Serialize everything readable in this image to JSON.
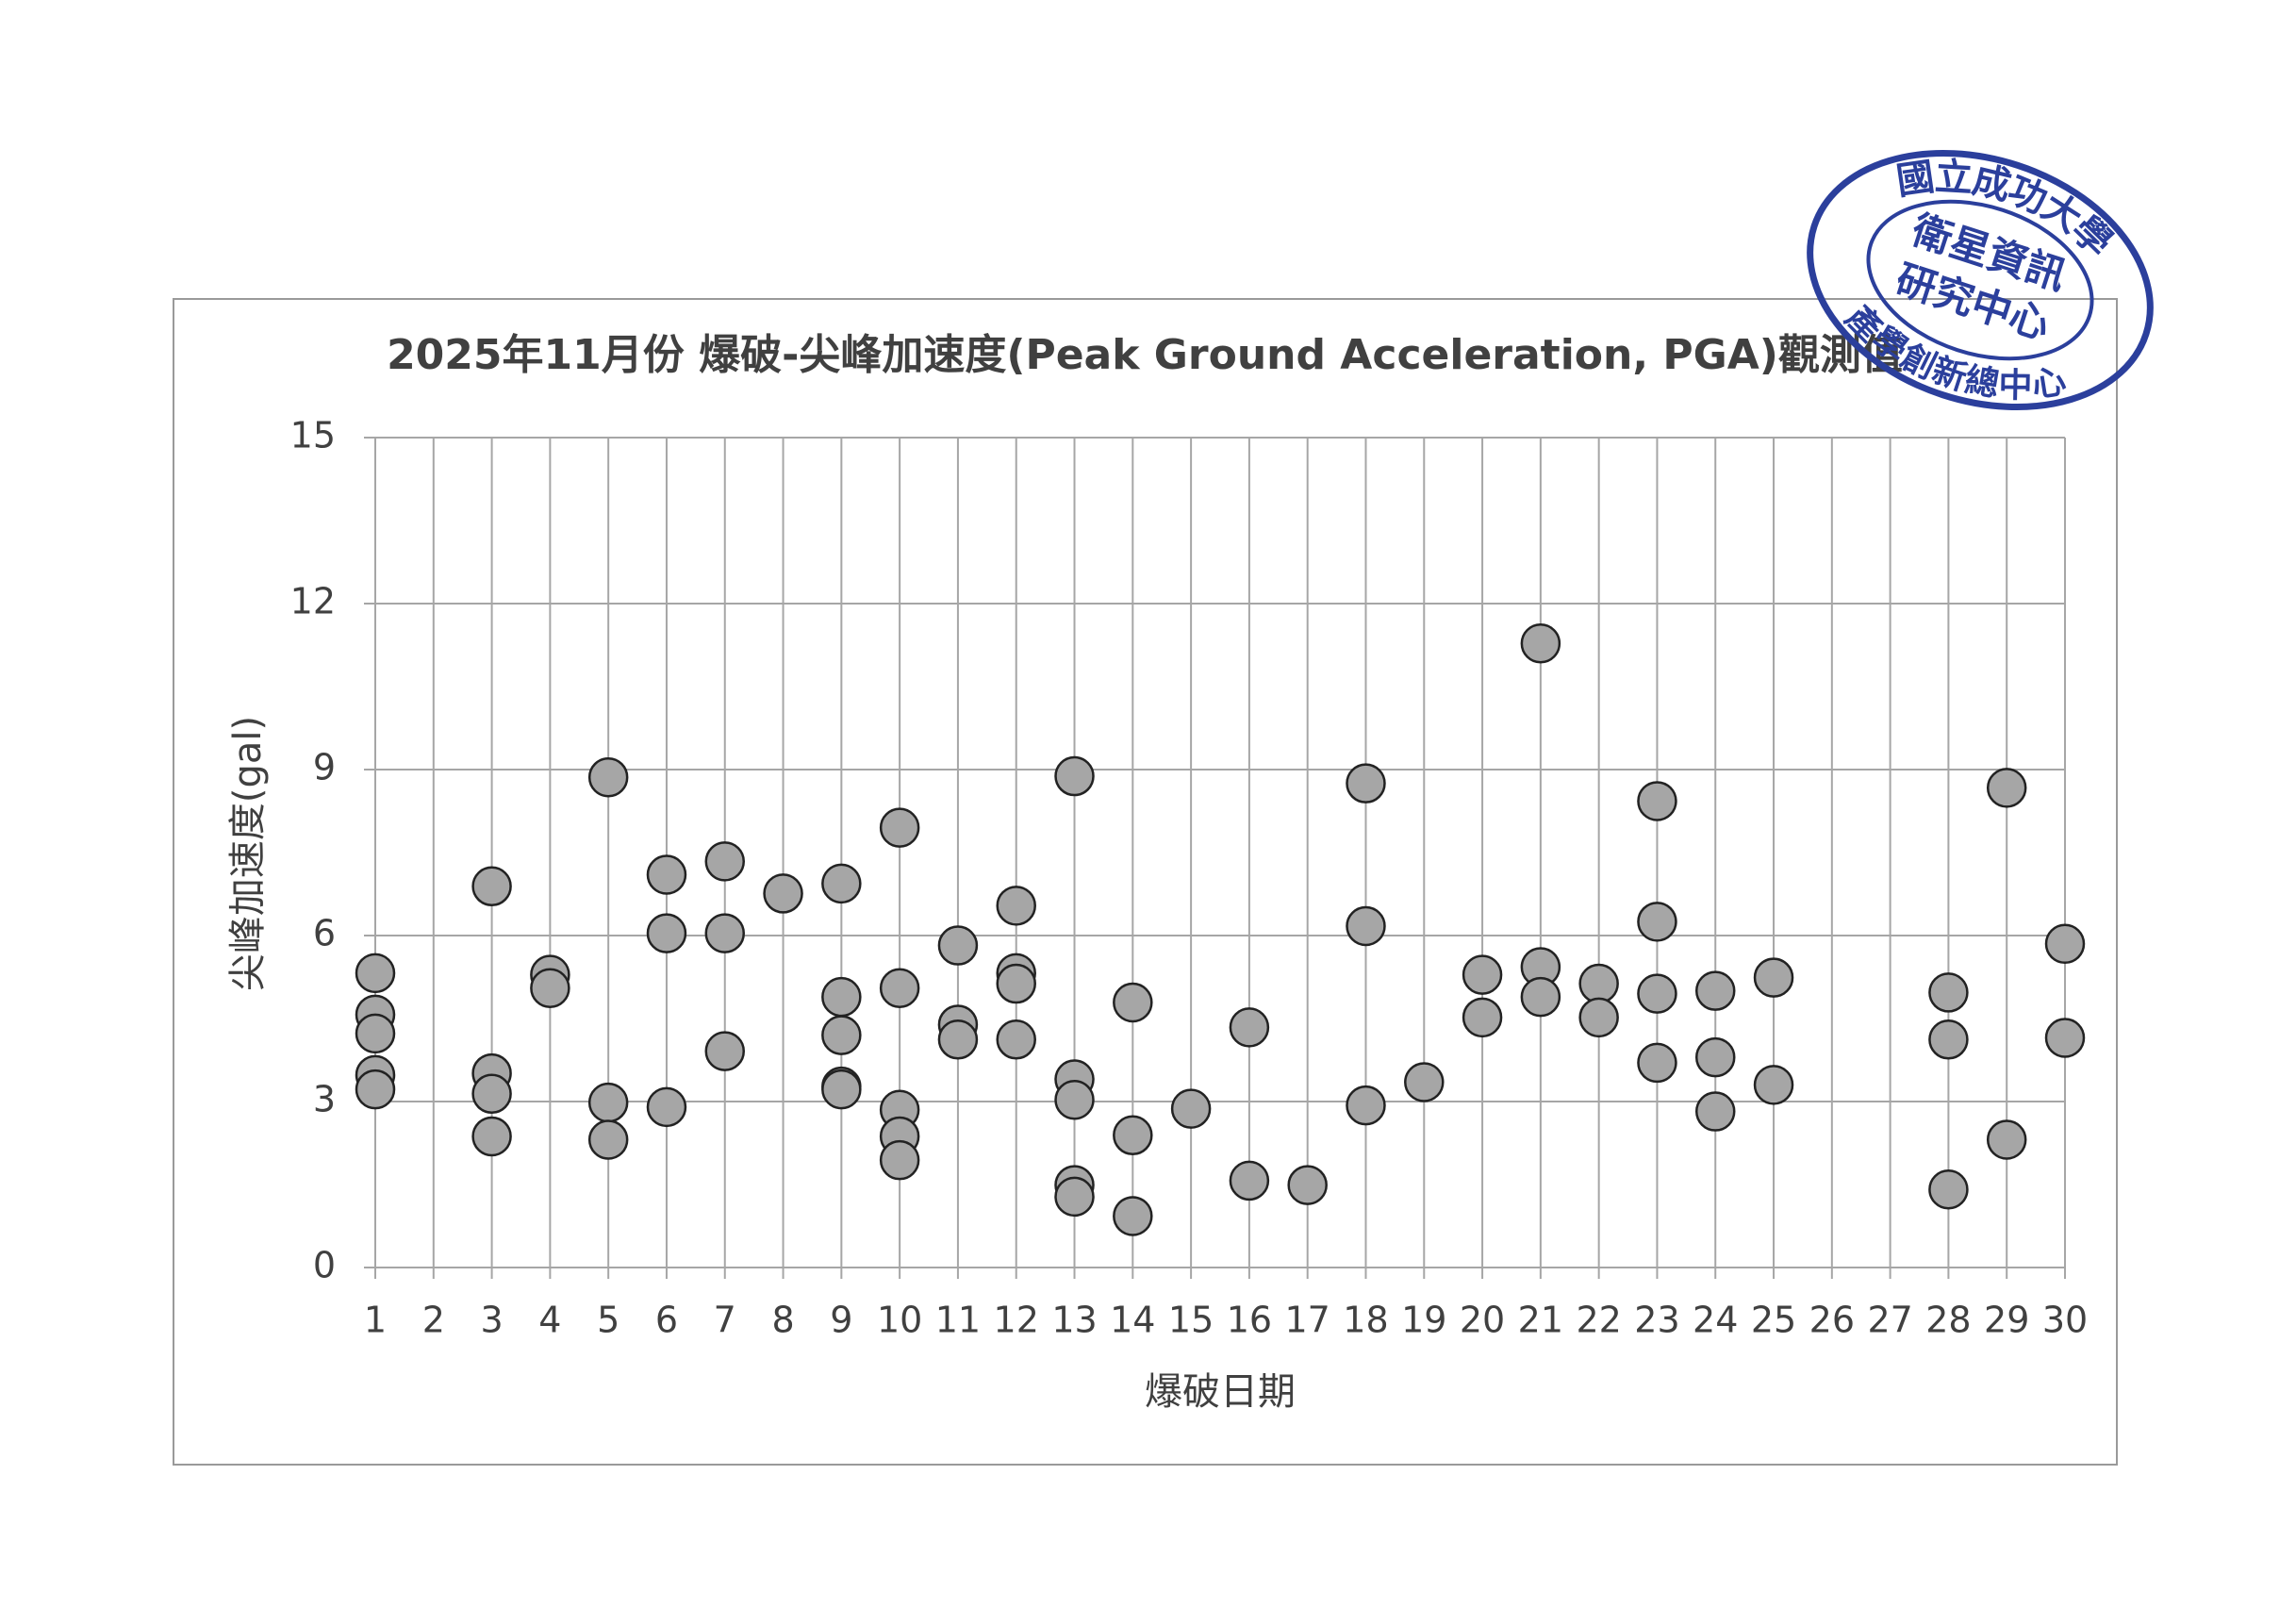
{
  "chart_data": {
    "type": "scatter",
    "title": "2025年11月份 爆破-尖峰加速度(Peak Ground Acceleration, PGA)觀測值",
    "xlabel": "爆破日期",
    "ylabel": "尖峰加速度(gal)",
    "xlim": [
      1,
      30
    ],
    "xticks": [
      1,
      2,
      3,
      4,
      5,
      6,
      7,
      8,
      9,
      10,
      11,
      12,
      13,
      14,
      15,
      16,
      17,
      18,
      19,
      20,
      21,
      22,
      23,
      24,
      25,
      26,
      27,
      28,
      29,
      30
    ],
    "ylim": [
      0,
      15
    ],
    "yticks": [
      0,
      3,
      6,
      9,
      12,
      15
    ],
    "grid": true,
    "series": [
      {
        "color": "#a6a6a6",
        "x": [
          1,
          1,
          1,
          1,
          1,
          3,
          3,
          3,
          3,
          4,
          4,
          5,
          5,
          5,
          6,
          6,
          6,
          7,
          7,
          7,
          8,
          9,
          9,
          9,
          9,
          9,
          10,
          10,
          10,
          10,
          10,
          11,
          11,
          11,
          12,
          12,
          12,
          12,
          13,
          13,
          13,
          13,
          13,
          14,
          14,
          14,
          15,
          16,
          16,
          17,
          18,
          18,
          18,
          19,
          20,
          20,
          21,
          21,
          21,
          22,
          22,
          23,
          23,
          23,
          23,
          24,
          24,
          24,
          25,
          25,
          28,
          28,
          28,
          29,
          29,
          30,
          30
        ],
        "values": [
          5.32,
          4.57,
          4.23,
          3.48,
          3.22,
          6.89,
          3.51,
          3.14,
          2.37,
          5.29,
          5.05,
          8.86,
          2.98,
          2.31,
          7.1,
          6.04,
          2.9,
          7.34,
          6.04,
          3.91,
          6.76,
          6.94,
          4.89,
          4.2,
          3.27,
          3.22,
          7.95,
          5.05,
          2.85,
          2.37,
          1.94,
          5.82,
          4.39,
          4.12,
          6.54,
          5.32,
          5.13,
          4.12,
          8.88,
          3.4,
          3.03,
          1.49,
          1.28,
          4.79,
          2.39,
          0.93,
          2.87,
          4.34,
          1.57,
          1.49,
          8.75,
          6.17,
          2.93,
          3.35,
          5.29,
          4.52,
          11.28,
          5.43,
          4.89,
          5.13,
          4.52,
          8.43,
          6.25,
          4.95,
          3.7,
          5.0,
          3.8,
          2.82,
          5.24,
          3.3,
          4.97,
          4.12,
          1.41,
          8.67,
          2.31,
          5.85,
          4.15
        ]
      }
    ]
  },
  "stamp": {
    "outer_top": "國立成功大學",
    "inner": [
      "衛星資訊",
      "研究中心"
    ],
    "outer_bottom": "產學創新總中心"
  }
}
